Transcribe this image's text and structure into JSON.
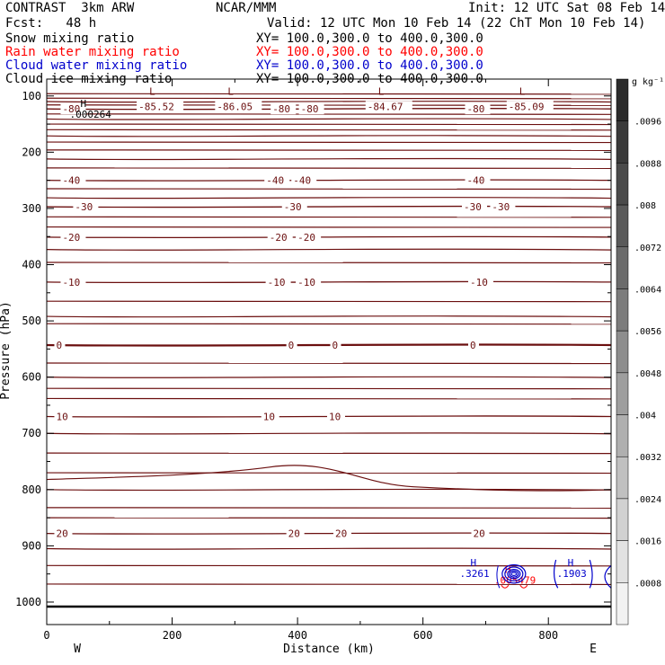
{
  "header": {
    "model": "CONTRAST  3km ARW",
    "fcst": "Fcst:   48 h",
    "org": "NCAR/MMM",
    "init": "Init: 12 UTC Sat 08 Feb 14",
    "valid": "Valid: 12 UTC Mon 10 Feb 14 (22 ChT Mon 10 Feb 14)"
  },
  "fields": [
    {
      "name": "Snow mixing ratio",
      "xy": "XY= 100.0,300.0 to 400.0,300.0",
      "color": "#000000"
    },
    {
      "name": "Rain water mixing ratio",
      "xy": "XY= 100.0,300.0 to 400.0,300.0",
      "color": "#ff0000"
    },
    {
      "name": "Cloud water mixing ratio",
      "xy": "XY= 100.0,300.0 to 400.0,300.0",
      "color": "#0000cc"
    },
    {
      "name": "Cloud ice mixing ratio",
      "xy": "XY= 100.0,300.0 to 400.0,300.0",
      "color": "#000000"
    }
  ],
  "chart_data": {
    "type": "contour",
    "xlabel": "Distance (km)",
    "ylabel": "Pressure (hPa)",
    "xlim": [
      0,
      900
    ],
    "ylim": [
      1040,
      70
    ],
    "xticks": [
      0,
      200,
      400,
      600,
      800
    ],
    "yticks": [
      100,
      200,
      300,
      400,
      500,
      600,
      700,
      800,
      900,
      1000
    ],
    "x_end_labels": {
      "left": "W",
      "right": "E"
    },
    "colorbar": {
      "unit": "g kg⁻¹",
      "ticks": [
        "0.0096",
        ".0088",
        ".008",
        ".0072",
        ".0064",
        ".0056",
        ".0048",
        ".004",
        ".0032",
        ".0024",
        ".0016",
        ".0008"
      ],
      "tick_labels": [
        ".0096",
        ".0088",
        ".008",
        ".0072",
        ".0064",
        ".0056",
        ".0048",
        ".004",
        ".0032",
        ".0024",
        ".0016",
        ".0008"
      ],
      "colors": [
        "#2b2b2b",
        "#3a3a3a",
        "#4a4a4a",
        "#5a5a5a",
        "#6b6b6b",
        "#7c7c7c",
        "#8d8d8d",
        "#9e9e9e",
        "#afafaf",
        "#c0c0c0",
        "#d1d1d1",
        "#e2e2e2",
        "#f2f2f2"
      ]
    },
    "temperature_color": "#6b0f0f",
    "isotherms": [
      {
        "value": -80,
        "p": 123,
        "labels": [
          "-80",
          "-80",
          "-80",
          "-80"
        ],
        "label_x": [
          25,
          360,
          405,
          670
        ]
      },
      {
        "value": -40,
        "p": 250,
        "labels": [
          "-40",
          "-40",
          "-40",
          "-40"
        ],
        "label_x": [
          25,
          350,
          393,
          670
        ]
      },
      {
        "value": -30,
        "p": 297,
        "labels": [
          "-30",
          "-30",
          "-30",
          "-30"
        ],
        "label_x": [
          45,
          378,
          665,
          710
        ]
      },
      {
        "value": -20,
        "p": 351,
        "labels": [
          "-20",
          "-20",
          "-20"
        ],
        "label_x": [
          25,
          355,
          400
        ]
      },
      {
        "value": -10,
        "p": 431,
        "labels": [
          "-10",
          "-10",
          "-10",
          "-10"
        ],
        "label_x": [
          25,
          352,
          400,
          675
        ]
      },
      {
        "value": 0,
        "p": 543,
        "labels": [
          "0",
          "0",
          "0",
          "0"
        ],
        "label_x": [
          15,
          385,
          455,
          675
        ]
      },
      {
        "value": 10,
        "p": 670,
        "labels": [
          "10",
          "10",
          "10"
        ],
        "label_x": [
          15,
          345,
          450
        ]
      },
      {
        "value": 20,
        "p": 878,
        "labels": [
          "20",
          "20",
          "20",
          "20"
        ],
        "label_x": [
          15,
          385,
          460,
          680
        ]
      }
    ],
    "minima": [
      {
        "text": "-85.52",
        "x": 175,
        "p": 104
      },
      {
        "text": "-86.05",
        "x": 300,
        "p": 104
      },
      {
        "text": "-84.67",
        "x": 540,
        "p": 104
      },
      {
        "text": "-85.09",
        "x": 765,
        "p": 104
      }
    ],
    "annotations": [
      {
        "text": ".000264",
        "x": 48,
        "p": 132,
        "color": "#000000"
      },
      {
        "text": ".3261",
        "x": 670,
        "p": 949,
        "color": "#0000cc"
      },
      {
        "text": ".1903",
        "x": 825,
        "p": 949,
        "color": "#0000cc"
      },
      {
        "text": ".005479",
        "x": 725,
        "p": 961,
        "color": "#ff0000"
      }
    ],
    "marker_labels": {
      "low": "L",
      "high": "H"
    }
  }
}
